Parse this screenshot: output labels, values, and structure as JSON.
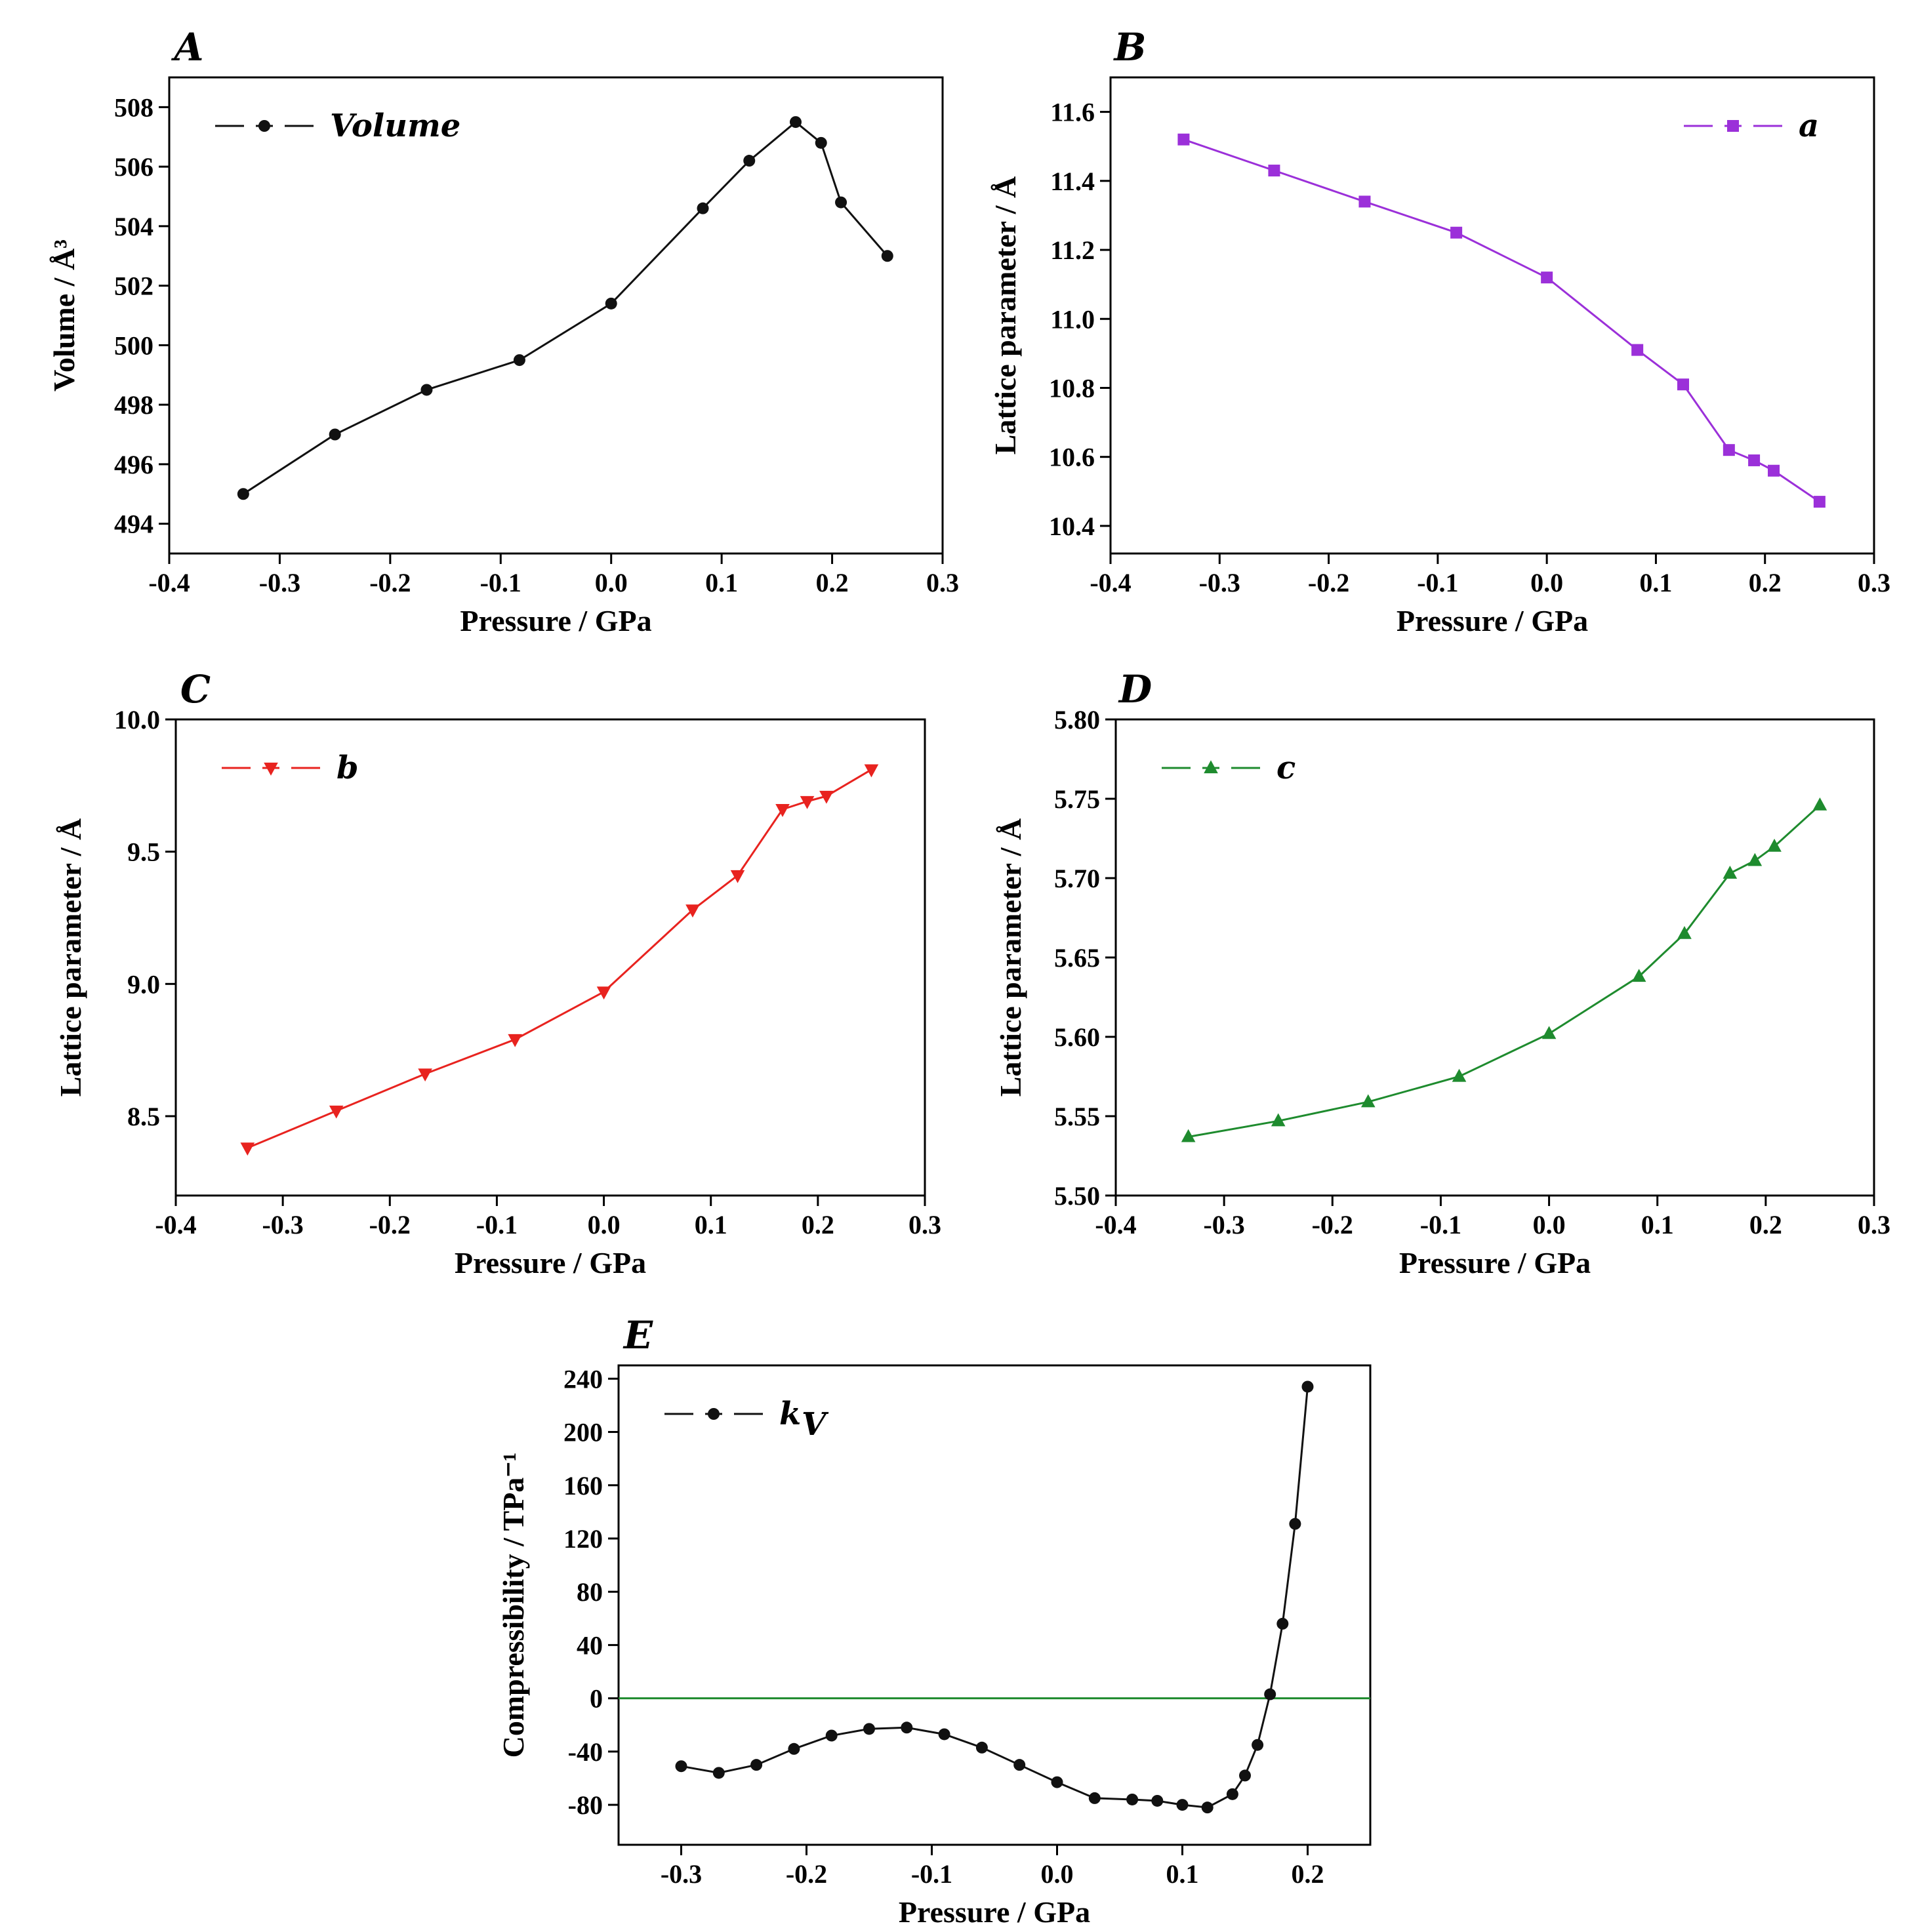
{
  "chart_data": [
    {
      "panel": "A",
      "type": "line",
      "color": "#111111",
      "marker": "circle",
      "legend": "Volume",
      "legend_position": "top-left",
      "xlabel": "Pressure / GPa",
      "ylabel": "Volume / Å³",
      "xlim": [
        -0.4,
        0.3
      ],
      "ylim": [
        493,
        509
      ],
      "xticks": [
        "-0.4",
        "-0.3",
        "-0.2",
        "-0.1",
        "0.0",
        "0.1",
        "0.2",
        "0.3"
      ],
      "yticks": [
        "494",
        "496",
        "498",
        "500",
        "502",
        "504",
        "506",
        "508"
      ],
      "x": [
        -0.333,
        -0.25,
        -0.167,
        -0.083,
        0.0,
        0.083,
        0.125,
        0.167,
        0.19,
        0.208,
        0.25
      ],
      "y": [
        495.0,
        497.0,
        498.5,
        499.5,
        501.4,
        504.6,
        506.2,
        507.5,
        506.8,
        504.8,
        503.0
      ]
    },
    {
      "panel": "B",
      "type": "line",
      "color": "#9b30d9",
      "marker": "square",
      "legend": "a",
      "legend_position": "top-right",
      "xlabel": "Pressure / GPa",
      "ylabel": "Lattice parameter / Å",
      "xlim": [
        -0.4,
        0.3
      ],
      "ylim": [
        10.32,
        11.7
      ],
      "xticks": [
        "-0.4",
        "-0.3",
        "-0.2",
        "-0.1",
        "0.0",
        "0.1",
        "0.2",
        "0.3"
      ],
      "yticks": [
        "10.4",
        "10.6",
        "10.8",
        "11.0",
        "11.2",
        "11.4",
        "11.6"
      ],
      "x": [
        -0.333,
        -0.25,
        -0.167,
        -0.083,
        0.0,
        0.083,
        0.125,
        0.167,
        0.19,
        0.208,
        0.25
      ],
      "y": [
        11.52,
        11.43,
        11.34,
        11.25,
        11.12,
        10.91,
        10.81,
        10.62,
        10.59,
        10.56,
        10.47
      ]
    },
    {
      "panel": "C",
      "type": "line",
      "color": "#e8231f",
      "marker": "triangle-down",
      "legend": "b",
      "legend_position": "top-left",
      "xlabel": "Pressure / GPa",
      "ylabel": "Lattice parameter / Å",
      "xlim": [
        -0.4,
        0.3
      ],
      "ylim": [
        8.2,
        10.0
      ],
      "xticks": [
        "-0.4",
        "-0.3",
        "-0.2",
        "-0.1",
        "0.0",
        "0.1",
        "0.2",
        "0.3"
      ],
      "yticks": [
        "8.5",
        "9.0",
        "9.5",
        "10.0"
      ],
      "x": [
        -0.333,
        -0.25,
        -0.167,
        -0.083,
        0.0,
        0.083,
        0.125,
        0.167,
        0.19,
        0.208,
        0.25
      ],
      "y": [
        8.38,
        8.52,
        8.66,
        8.79,
        8.97,
        9.28,
        9.41,
        9.66,
        9.69,
        9.71,
        9.81
      ]
    },
    {
      "panel": "D",
      "type": "line",
      "color": "#1e8b2e",
      "marker": "triangle-up",
      "legend": "c",
      "legend_position": "top-left",
      "xlabel": "Pressure / GPa",
      "ylabel": "Lattice parameter / Å",
      "xlim": [
        -0.4,
        0.3
      ],
      "ylim": [
        5.5,
        5.8
      ],
      "xticks": [
        "-0.4",
        "-0.3",
        "-0.2",
        "-0.1",
        "0.0",
        "0.1",
        "0.2",
        "0.3"
      ],
      "yticks": [
        "5.50",
        "5.55",
        "5.60",
        "5.65",
        "5.70",
        "5.75",
        "5.80"
      ],
      "x": [
        -0.333,
        -0.25,
        -0.167,
        -0.083,
        0.0,
        0.083,
        0.125,
        0.167,
        0.19,
        0.208,
        0.25
      ],
      "y": [
        5.537,
        5.547,
        5.559,
        5.575,
        5.602,
        5.638,
        5.665,
        5.703,
        5.711,
        5.72,
        5.746
      ]
    },
    {
      "panel": "E",
      "type": "line",
      "color": "#111111",
      "marker": "circle",
      "legend": "k",
      "legend_subscript": "V",
      "legend_position": "top-left",
      "xlabel": "Pressure / GPa",
      "ylabel": "Compressibility / TPa⁻¹",
      "xlim": [
        -0.35,
        0.25
      ],
      "ylim": [
        -110,
        250
      ],
      "xticks": [
        "-0.3",
        "-0.2",
        "-0.1",
        "0.0",
        "0.1",
        "0.2"
      ],
      "xtick_values": [
        -0.3,
        -0.2,
        -0.1,
        0.0,
        0.1,
        0.2
      ],
      "yticks": [
        "-80",
        "-40",
        "0",
        "40",
        "80",
        "120",
        "160",
        "200",
        "240"
      ],
      "reference_line": {
        "y": 0,
        "color": "#1e8b2e"
      },
      "x": [
        -0.3,
        -0.27,
        -0.24,
        -0.21,
        -0.18,
        -0.15,
        -0.12,
        -0.09,
        -0.06,
        -0.03,
        0.0,
        0.03,
        0.06,
        0.08,
        0.1,
        0.12,
        0.14,
        0.15,
        0.16,
        0.17,
        0.18,
        0.19,
        0.2
      ],
      "y": [
        -51,
        -56,
        -50,
        -38,
        -28,
        -23,
        -22,
        -27,
        -37,
        -50,
        -63,
        -75,
        -76,
        -77,
        -80,
        -82,
        -72,
        -58,
        -35,
        3,
        56,
        131,
        234
      ]
    }
  ]
}
